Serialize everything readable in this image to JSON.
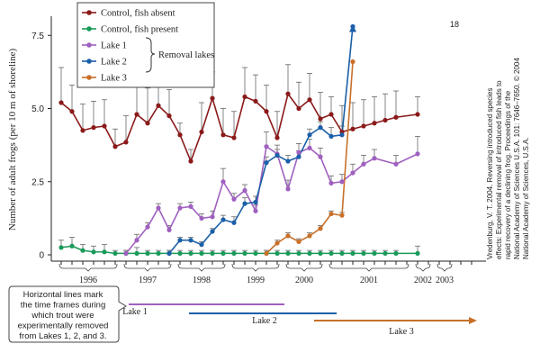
{
  "chart_data": {
    "type": "line",
    "ylabel": "Number of adult frogs (per 10 m of shoreline)",
    "ylim": [
      0,
      8.3
    ],
    "yticks": [
      "0",
      "2.5",
      "5.0",
      "7.5"
    ],
    "ytick_values": [
      0,
      2.5,
      5.0,
      7.5
    ],
    "x_points": 39,
    "year_labels": [
      {
        "label": "1996",
        "span": [
          0,
          5
        ]
      },
      {
        "label": "1997",
        "span": [
          6,
          10
        ]
      },
      {
        "label": "1998",
        "span": [
          11,
          15
        ]
      },
      {
        "label": "1999",
        "span": [
          16,
          20
        ]
      },
      {
        "label": "2000",
        "span": [
          21,
          24
        ]
      },
      {
        "label": "2001",
        "span": [
          25,
          32
        ]
      },
      {
        "label": "2002",
        "span": [
          33,
          34
        ]
      },
      {
        "label": "2003",
        "span": [
          35,
          36
        ]
      }
    ],
    "series": [
      {
        "name": "Control, fish absent",
        "color": "#8b1a1a",
        "x": [
          0,
          1,
          2,
          3,
          4,
          5,
          6,
          7,
          8,
          9,
          10,
          11,
          12,
          13,
          14,
          15,
          16,
          17,
          18,
          19,
          20,
          21,
          22,
          23,
          24,
          25,
          26,
          27,
          28,
          29,
          30,
          31,
          33
        ],
        "values": [
          5.2,
          4.9,
          4.25,
          4.35,
          4.4,
          3.7,
          3.85,
          4.8,
          4.5,
          5.1,
          4.75,
          4.1,
          3.2,
          4.2,
          5.35,
          4.1,
          4.0,
          5.4,
          5.25,
          4.9,
          4.0,
          5.5,
          5.0,
          5.3,
          4.65,
          4.8,
          4.2,
          4.3,
          4.4,
          4.5,
          4.6,
          4.7,
          4.8
        ],
        "errors": [
          1.2,
          0.9,
          0.9,
          0.9,
          0.9,
          0.6,
          0.9,
          1.0,
          1.2,
          1.0,
          0.9,
          0.4,
          0.4,
          1.0,
          0.9,
          0.9,
          0.9,
          1.0,
          0.9,
          0.9,
          0.9,
          1.0,
          0.9,
          0.9,
          0.9,
          0.6,
          0.9,
          0.9,
          0.9,
          0.9,
          0.9,
          0.9,
          0.6
        ]
      },
      {
        "name": "Control, fish present",
        "color": "#1a9a5a",
        "x": [
          0,
          1,
          2,
          3,
          4,
          5,
          6,
          7,
          8,
          9,
          10,
          11,
          12,
          13,
          14,
          15,
          16,
          17,
          18,
          19,
          20,
          21,
          22,
          23,
          24,
          25,
          26,
          27,
          28,
          29,
          30,
          31,
          33
        ],
        "values": [
          0.25,
          0.3,
          0.15,
          0.1,
          0.1,
          0.05,
          0.05,
          0.05,
          0.05,
          0.05,
          0.05,
          0.05,
          0.05,
          0.05,
          0.05,
          0.05,
          0.05,
          0.05,
          0.05,
          0.05,
          0.05,
          0.05,
          0.05,
          0.05,
          0.05,
          0.05,
          0.05,
          0.05,
          0.05,
          0.05,
          0.05,
          0.05,
          0.05
        ],
        "errors": [
          0.25,
          0.3,
          0.2,
          0.2,
          0.25,
          0.1,
          0.1,
          0.2,
          0.1,
          0.1,
          0.1,
          0.1,
          0.1,
          0.1,
          0.1,
          0.1,
          0.1,
          0.1,
          0.1,
          0.1,
          0.1,
          0.1,
          0.1,
          0.1,
          0.1,
          0.1,
          0.1,
          0.1,
          0.1,
          0.1,
          0.1,
          0.1,
          0.25
        ]
      },
      {
        "name": "Lake 1",
        "color": "#a060c0",
        "x": [
          6,
          7,
          8,
          9,
          10,
          11,
          12,
          13,
          14,
          15,
          16,
          17,
          18,
          19,
          20,
          21,
          22,
          23,
          24,
          25,
          26,
          27,
          28,
          29,
          31,
          33
        ],
        "values": [
          0.05,
          0.5,
          0.95,
          1.6,
          0.85,
          1.6,
          1.65,
          1.25,
          1.3,
          2.5,
          1.9,
          2.2,
          1.5,
          3.7,
          3.45,
          2.25,
          3.5,
          3.65,
          3.35,
          2.45,
          2.5,
          2.8,
          3.1,
          3.3,
          3.1,
          3.45
        ],
        "errors": [
          0.1,
          0.2,
          0.15,
          0.15,
          0.15,
          0.15,
          0.15,
          0.15,
          0.2,
          0.45,
          0.2,
          0.2,
          0.2,
          0.5,
          0.3,
          0.3,
          0.3,
          0.3,
          0.3,
          0.25,
          0.25,
          0.3,
          0.3,
          0.3,
          0.3,
          0.6
        ]
      },
      {
        "name": "Lake 2",
        "color": "#1a5fa8",
        "x": [
          10,
          11,
          12,
          13,
          14,
          15,
          16,
          17,
          18,
          19,
          20,
          21,
          22,
          23,
          24,
          25,
          26,
          27
        ],
        "values": [
          0.05,
          0.5,
          0.5,
          0.35,
          0.8,
          1.2,
          1.1,
          1.75,
          1.8,
          3.15,
          3.4,
          3.2,
          3.35,
          4.1,
          4.35,
          4.05,
          4.1,
          7.8
        ],
        "errors": [
          0.1,
          0.1,
          0.1,
          0.1,
          0.1,
          0.15,
          0.2,
          0.2,
          0.2,
          0.2,
          0.2,
          0.2,
          0.2,
          0.2,
          0.2,
          0.3,
          0.3,
          0.0
        ]
      },
      {
        "name": "Lake 3",
        "color": "#c8702a",
        "x": [
          19,
          20,
          21,
          22,
          23,
          24,
          25,
          26,
          27
        ],
        "values": [
          0.05,
          0.4,
          0.65,
          0.45,
          0.65,
          0.9,
          1.4,
          1.35,
          6.6
        ],
        "errors": [
          0.1,
          0.1,
          0.1,
          0.1,
          0.1,
          0.1,
          0.1,
          0.1,
          0.0
        ]
      }
    ],
    "offscale_label": "18",
    "legend": {
      "items": [
        "Control, fish absent",
        "Control, fish present",
        "Lake 1",
        "Lake 2",
        "Lake 3"
      ],
      "group_label": "Removal lakes",
      "placement": "top-left"
    },
    "removal_periods": [
      {
        "label": "Lake 1",
        "color": "#a060c0"
      },
      {
        "label": "Lake 2",
        "color": "#1a5fa8"
      },
      {
        "label": "Lake 3",
        "color": "#c8702a"
      }
    ],
    "callout": "Horizontal lines mark the time frames during which trout were experimentally removed from Lakes 1, 2, and 3.",
    "citation": "Vredenburg, V. T. 2004. Reversing introduced species effects: Experimental removal of introduced fish leads to rapid recovery of a declining frog. Proceedings of the National Academy of Sciences U.S.A. 101: 7646–7650. © 2004 National Academy of Sciences, U.S.A."
  }
}
